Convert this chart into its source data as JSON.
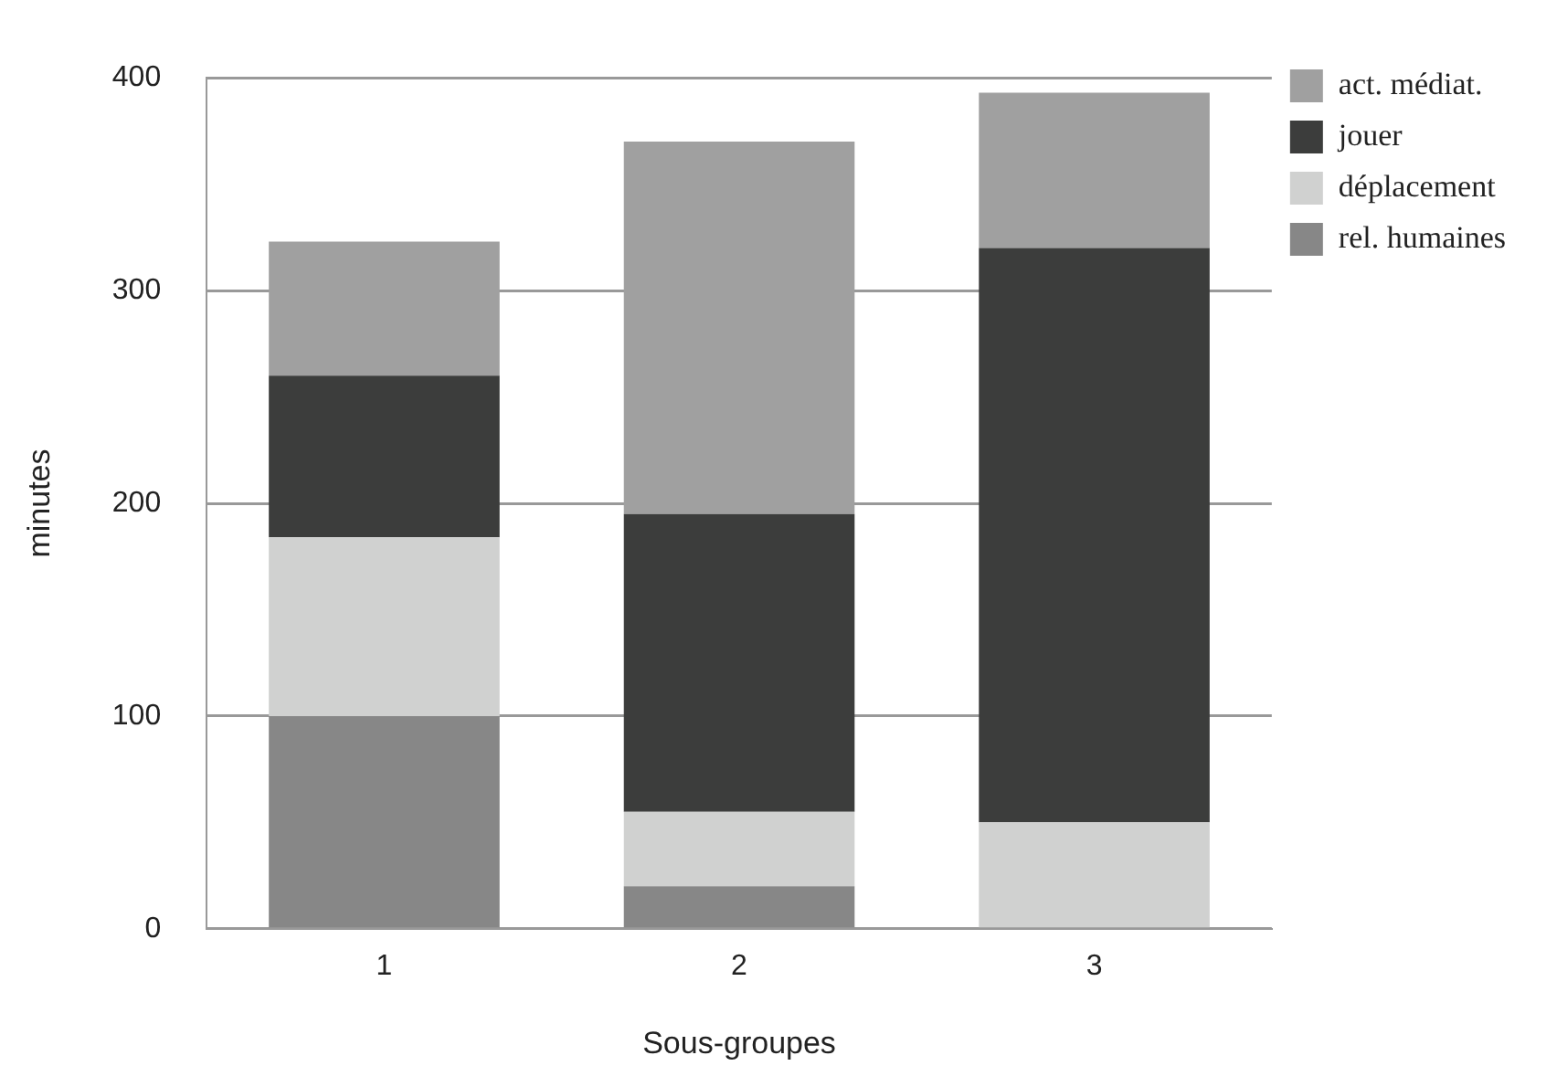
{
  "chart_data": {
    "type": "bar",
    "xlabel": "Sous-groupes",
    "ylabel": "minutes",
    "categories": [
      "1",
      "2",
      "3"
    ],
    "stacked": true,
    "ylim": [
      0,
      400
    ],
    "yticks": [
      0,
      100,
      200,
      300,
      400
    ],
    "grid": "y",
    "legend": "top right",
    "series": [
      {
        "name": "rel. humaines",
        "color": "#878787",
        "values": [
          100,
          20,
          0
        ]
      },
      {
        "name": "déplacement",
        "color": "#d0d1d0",
        "values": [
          84,
          35,
          50
        ]
      },
      {
        "name": "jouer",
        "color": "#3c3d3c",
        "values": [
          76,
          140,
          270
        ]
      },
      {
        "name": "act. médiat.",
        "color": "#a0a0a0",
        "values": [
          63,
          175,
          73
        ]
      }
    ]
  }
}
